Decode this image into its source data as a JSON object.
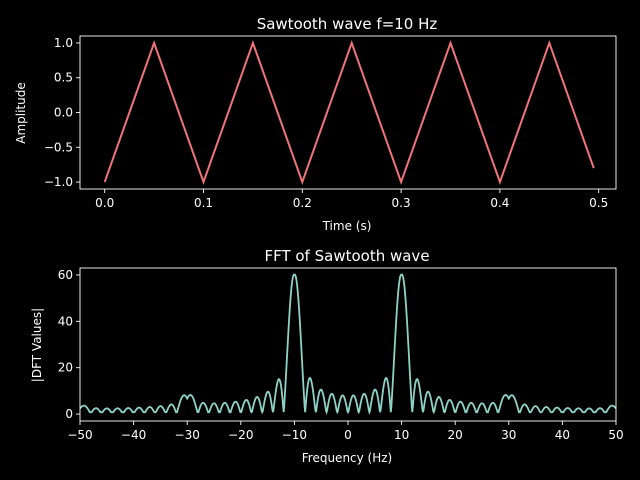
{
  "colors": {
    "background": "#000000",
    "foreground": "#ffffff",
    "sawtooth_line": "#f0747a",
    "fft_line": "#8dd3c7"
  },
  "chart_data": [
    {
      "type": "line",
      "title": "Sawtooth wave f=10 Hz",
      "xlabel": "Time (s)",
      "ylabel": "Amplitude",
      "xlim": [
        -0.025,
        0.5175
      ],
      "ylim": [
        -1.1,
        1.1
      ],
      "xticks": [
        0.0,
        0.1,
        0.2,
        0.3,
        0.4,
        0.5
      ],
      "xtick_labels": [
        "0.0",
        "0.1",
        "0.2",
        "0.3",
        "0.4",
        "0.5"
      ],
      "yticks": [
        1.0,
        0.5,
        0.0,
        -0.5,
        -1.0
      ],
      "ytick_labels": [
        "1.0",
        "0.5",
        "0.0",
        "−0.5",
        "−1.0"
      ],
      "grid": false,
      "series": [
        {
          "x": [
            0.0,
            0.05,
            0.1,
            0.15,
            0.2,
            0.25,
            0.3,
            0.35,
            0.4,
            0.45,
            0.495
          ],
          "y": [
            -1.0,
            1.0,
            -1.0,
            1.0,
            -1.0,
            1.0,
            -1.0,
            1.0,
            -1.0,
            1.0,
            -0.8
          ]
        }
      ]
    },
    {
      "type": "line",
      "title": "FFT of Sawtooth wave",
      "xlabel": "Frequency (Hz)",
      "ylabel": "|DFT Values|",
      "xlim": [
        -50,
        50
      ],
      "ylim": [
        -3,
        63
      ],
      "xticks": [
        -50,
        -40,
        -30,
        -20,
        -10,
        0,
        10,
        20,
        30,
        40,
        50
      ],
      "xtick_labels": [
        "−50",
        "−40",
        "−30",
        "−20",
        "−10",
        "0",
        "10",
        "20",
        "30",
        "40",
        "50"
      ],
      "yticks": [
        60,
        40,
        20,
        0
      ],
      "ytick_labels": [
        "60",
        "40",
        "20",
        "0"
      ],
      "grid": false,
      "series": [
        {
          "x": [
            -50,
            -30,
            -10,
            10,
            30,
            50
          ],
          "y": [
            2.0,
            7.5,
            60.0,
            60.0,
            7.5,
            2.0
          ]
        }
      ]
    }
  ]
}
